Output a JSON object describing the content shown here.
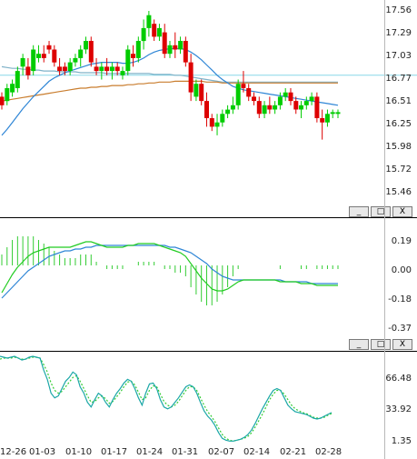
{
  "price_panel": {
    "y_ticks": [
      "17.56",
      "17.29",
      "17.03",
      "16.77",
      "16.51",
      "16.25",
      "15.98",
      "15.72",
      "15.46"
    ],
    "reference_level": 16.85
  },
  "macd_panel": {
    "y_ticks": [
      "0.19",
      "0.00",
      "-0.18",
      "-0.37"
    ]
  },
  "osc_panel": {
    "y_ticks": [
      "66.48",
      "33.92",
      "1.35"
    ]
  },
  "x_axis": {
    "labels": [
      "12-26",
      "01-03",
      "01-10",
      "01-17",
      "01-24",
      "01-31",
      "02-07",
      "02-14",
      "02-21",
      "02-28"
    ]
  },
  "window_buttons": {
    "minimize": "_",
    "restore": "□",
    "close": "X"
  },
  "colors": {
    "up": "#00cc00",
    "down": "#dd0000",
    "ma_short": "#2f86d6",
    "ma_long": "#c97d2e",
    "ref_line": "#88d8e8",
    "macd_hist": "#33cc33",
    "dif": "#22cc22",
    "dea": "#2f86d6",
    "osc_k": "#1aa7a7",
    "osc_d": "#33cc33"
  },
  "chart_data": [
    {
      "type": "candlestick",
      "ylim": [
        15.46,
        17.6
      ],
      "x": [
        "12-26",
        "12-27",
        "12-28",
        "12-29",
        "12-30",
        "12-31",
        "01-01",
        "01-02",
        "01-03",
        "01-04",
        "01-05",
        "01-06",
        "01-07",
        "01-08",
        "01-09",
        "01-10",
        "01-11",
        "01-12",
        "01-13",
        "01-14",
        "01-15",
        "01-16",
        "01-17",
        "01-18",
        "01-19",
        "01-20",
        "01-21",
        "01-22",
        "01-23",
        "01-24",
        "01-25",
        "01-26",
        "01-27",
        "01-28",
        "01-29",
        "01-30",
        "01-31",
        "02-01",
        "02-02",
        "02-03",
        "02-04",
        "02-05",
        "02-06",
        "02-07",
        "02-08",
        "02-09",
        "02-10",
        "02-11",
        "02-12",
        "02-13",
        "02-14",
        "02-15",
        "02-16",
        "02-17",
        "02-18",
        "02-19",
        "02-20",
        "02-21",
        "02-22",
        "02-23",
        "02-24",
        "02-25",
        "02-26",
        "02-27",
        "02-28"
      ],
      "ohlc": [
        [
          16.6,
          16.65,
          16.45,
          16.5
        ],
        [
          16.55,
          16.75,
          16.5,
          16.7
        ],
        [
          16.65,
          16.8,
          16.6,
          16.75
        ],
        [
          16.7,
          16.95,
          16.65,
          16.9
        ],
        [
          16.95,
          17.1,
          16.85,
          17.05
        ],
        [
          16.95,
          17.05,
          16.8,
          16.85
        ],
        [
          16.9,
          17.2,
          16.85,
          17.15
        ],
        [
          17.05,
          17.2,
          17.0,
          17.1
        ],
        [
          17.1,
          17.2,
          17.0,
          17.05
        ],
        [
          17.2,
          17.25,
          17.1,
          17.15
        ],
        [
          17.15,
          17.2,
          16.95,
          17.0
        ],
        [
          16.95,
          17.05,
          16.85,
          16.9
        ],
        [
          16.95,
          17.0,
          16.85,
          16.9
        ],
        [
          16.9,
          17.05,
          16.85,
          17.0
        ],
        [
          17.0,
          17.1,
          16.95,
          17.05
        ],
        [
          17.05,
          17.2,
          16.95,
          17.15
        ],
        [
          17.15,
          17.3,
          17.1,
          17.25
        ],
        [
          17.25,
          17.3,
          16.95,
          17.0
        ],
        [
          16.95,
          17.05,
          16.85,
          16.9
        ],
        [
          16.9,
          17.0,
          16.8,
          16.95
        ],
        [
          16.95,
          17.05,
          16.85,
          16.9
        ],
        [
          16.9,
          17.0,
          16.8,
          16.95
        ],
        [
          16.95,
          17.0,
          16.85,
          16.9
        ],
        [
          16.85,
          16.95,
          16.8,
          16.9
        ],
        [
          16.9,
          17.2,
          16.85,
          17.15
        ],
        [
          17.1,
          17.2,
          16.95,
          17.05
        ],
        [
          17.05,
          17.3,
          17.0,
          17.25
        ],
        [
          17.25,
          17.5,
          17.15,
          17.4
        ],
        [
          17.4,
          17.6,
          17.3,
          17.55
        ],
        [
          17.45,
          17.5,
          17.25,
          17.3
        ],
        [
          17.3,
          17.45,
          17.25,
          17.4
        ],
        [
          17.35,
          17.45,
          17.05,
          17.1
        ],
        [
          17.1,
          17.25,
          17.05,
          17.2
        ],
        [
          17.2,
          17.35,
          17.05,
          17.15
        ],
        [
          17.15,
          17.3,
          17.1,
          17.25
        ],
        [
          17.25,
          17.3,
          16.95,
          17.0
        ],
        [
          17.0,
          17.1,
          16.55,
          16.65
        ],
        [
          16.6,
          16.8,
          16.55,
          16.75
        ],
        [
          16.75,
          16.8,
          16.5,
          16.55
        ],
        [
          16.55,
          16.65,
          16.25,
          16.35
        ],
        [
          16.35,
          16.4,
          16.2,
          16.25
        ],
        [
          16.25,
          16.4,
          16.15,
          16.3
        ],
        [
          16.3,
          16.45,
          16.25,
          16.4
        ],
        [
          16.4,
          16.5,
          16.35,
          16.45
        ],
        [
          16.45,
          16.6,
          16.4,
          16.5
        ],
        [
          16.5,
          16.8,
          16.45,
          16.75
        ],
        [
          16.75,
          16.9,
          16.65,
          16.7
        ],
        [
          16.7,
          16.75,
          16.55,
          16.6
        ],
        [
          16.6,
          16.65,
          16.5,
          16.55
        ],
        [
          16.55,
          16.6,
          16.35,
          16.4
        ],
        [
          16.4,
          16.55,
          16.35,
          16.5
        ],
        [
          16.5,
          16.6,
          16.4,
          16.45
        ],
        [
          16.45,
          16.55,
          16.4,
          16.5
        ],
        [
          16.5,
          16.65,
          16.45,
          16.6
        ],
        [
          16.6,
          16.7,
          16.55,
          16.65
        ],
        [
          16.65,
          16.7,
          16.5,
          16.55
        ],
        [
          16.55,
          16.6,
          16.4,
          16.45
        ],
        [
          16.45,
          16.55,
          16.35,
          16.5
        ],
        [
          16.5,
          16.6,
          16.45,
          16.55
        ],
        [
          16.55,
          16.65,
          16.5,
          16.6
        ],
        [
          16.6,
          16.65,
          16.3,
          16.35
        ],
        [
          16.35,
          16.45,
          16.1,
          16.3
        ],
        [
          16.3,
          16.45,
          16.25,
          16.4
        ],
        [
          16.4,
          16.45,
          16.35,
          16.42
        ],
        [
          16.4,
          16.45,
          16.35,
          16.42
        ]
      ],
      "ma_short": [
        16.15,
        16.22,
        16.3,
        16.38,
        16.46,
        16.53,
        16.6,
        16.66,
        16.72,
        16.78,
        16.82,
        16.85,
        16.88,
        16.9,
        16.92,
        16.94,
        16.96,
        16.98,
        16.99,
        17.0,
        17.0,
        17.0,
        17.0,
        16.99,
        16.99,
        17.0,
        17.02,
        17.05,
        17.09,
        17.12,
        17.14,
        17.15,
        17.16,
        17.16,
        17.16,
        17.15,
        17.12,
        17.08,
        17.03,
        16.97,
        16.91,
        16.85,
        16.8,
        16.76,
        16.72,
        16.7,
        16.68,
        16.67,
        16.66,
        16.65,
        16.64,
        16.63,
        16.62,
        16.61,
        16.6,
        16.59,
        16.58,
        16.57,
        16.56,
        16.55,
        16.54,
        16.53,
        16.52,
        16.51,
        16.5
      ],
      "ma_long": [
        16.55,
        16.56,
        16.57,
        16.58,
        16.59,
        16.6,
        16.61,
        16.62,
        16.63,
        16.64,
        16.65,
        16.66,
        16.67,
        16.68,
        16.69,
        16.7,
        16.7,
        16.71,
        16.71,
        16.72,
        16.72,
        16.73,
        16.73,
        16.73,
        16.74,
        16.74,
        16.75,
        16.75,
        16.76,
        16.76,
        16.77,
        16.77,
        16.77,
        16.78,
        16.78,
        16.78,
        16.78,
        16.78,
        16.78,
        16.77,
        16.77,
        16.77,
        16.76,
        16.76,
        16.76,
        16.76,
        16.76,
        16.76,
        16.76,
        16.76,
        16.76,
        16.76,
        16.76,
        16.76,
        16.76,
        16.76,
        16.76,
        16.76,
        16.76,
        16.76,
        16.76,
        16.76,
        16.76,
        16.76,
        16.76
      ],
      "ma_mid": [
        16.95,
        16.94,
        16.93,
        16.93,
        16.92,
        16.92,
        16.91,
        16.91,
        16.9,
        16.9,
        16.9,
        16.89,
        16.89,
        16.89,
        16.89,
        16.88,
        16.88,
        16.88,
        16.88,
        16.88,
        16.87,
        16.87,
        16.87,
        16.87,
        16.87,
        16.87,
        16.87,
        16.87,
        16.87,
        16.86,
        16.86,
        16.86,
        16.86,
        16.85,
        16.85,
        16.84,
        16.83,
        16.82,
        16.81,
        16.8,
        16.79,
        16.78,
        16.77,
        16.77,
        16.77,
        16.77,
        16.77,
        16.77,
        16.77,
        16.77,
        16.77,
        16.77,
        16.77,
        16.77,
        16.77,
        16.77,
        16.77,
        16.77,
        16.77,
        16.77,
        16.77,
        16.77,
        16.77,
        16.77,
        16.77
      ]
    },
    {
      "type": "macd",
      "ylim": [
        -0.37,
        0.22
      ],
      "dif": [
        -0.15,
        -0.1,
        -0.05,
        -0.01,
        0.02,
        0.05,
        0.07,
        0.08,
        0.09,
        0.1,
        0.1,
        0.1,
        0.1,
        0.1,
        0.11,
        0.12,
        0.13,
        0.13,
        0.12,
        0.11,
        0.1,
        0.1,
        0.1,
        0.1,
        0.11,
        0.11,
        0.12,
        0.12,
        0.12,
        0.12,
        0.11,
        0.1,
        0.09,
        0.08,
        0.07,
        0.05,
        0.01,
        -0.03,
        -0.07,
        -0.1,
        -0.13,
        -0.14,
        -0.14,
        -0.13,
        -0.11,
        -0.09,
        -0.08,
        -0.08,
        -0.08,
        -0.08,
        -0.08,
        -0.08,
        -0.08,
        -0.09,
        -0.09,
        -0.09,
        -0.09,
        -0.1,
        -0.1,
        -0.1,
        -0.11,
        -0.11,
        -0.11,
        -0.11,
        -0.11
      ],
      "dea": [
        -0.18,
        -0.15,
        -0.12,
        -0.09,
        -0.06,
        -0.03,
        -0.01,
        0.01,
        0.03,
        0.05,
        0.06,
        0.07,
        0.08,
        0.08,
        0.09,
        0.09,
        0.1,
        0.1,
        0.11,
        0.11,
        0.11,
        0.11,
        0.11,
        0.11,
        0.11,
        0.11,
        0.11,
        0.11,
        0.11,
        0.11,
        0.11,
        0.11,
        0.1,
        0.1,
        0.09,
        0.08,
        0.07,
        0.05,
        0.03,
        0.01,
        -0.02,
        -0.04,
        -0.06,
        -0.07,
        -0.08,
        -0.08,
        -0.08,
        -0.08,
        -0.08,
        -0.08,
        -0.08,
        -0.08,
        -0.08,
        -0.08,
        -0.09,
        -0.09,
        -0.09,
        -0.09,
        -0.09,
        -0.1,
        -0.1,
        -0.1,
        -0.1,
        -0.1,
        -0.1
      ]
    },
    {
      "type": "line",
      "ylim": [
        1.35,
        96
      ],
      "series": [
        {
          "values": [
            95,
            94,
            93,
            94,
            95,
            93,
            91,
            92,
            94,
            95,
            94,
            93,
            80,
            70,
            55,
            50,
            52,
            60,
            68,
            72,
            78,
            75,
            62,
            55,
            45,
            40,
            48,
            55,
            52,
            45,
            40,
            48,
            55,
            60,
            66,
            70,
            68,
            60,
            50,
            42,
            55,
            65,
            66,
            60,
            48,
            40,
            38,
            40,
            45,
            50,
            56,
            62,
            64,
            62,
            55,
            45,
            36,
            30,
            26,
            20,
            12,
            6,
            4,
            3,
            3,
            4,
            5,
            7,
            10,
            15,
            22,
            30,
            38,
            45,
            52,
            58,
            60,
            58,
            50,
            42,
            38,
            35,
            34,
            33,
            32,
            30,
            28,
            27,
            28,
            30,
            32,
            34
          ]
        },
        {
          "values": [
            92,
            93,
            93,
            93,
            94,
            93,
            92,
            92,
            93,
            94,
            94,
            93,
            86,
            78,
            66,
            58,
            55,
            57,
            62,
            67,
            72,
            74,
            68,
            60,
            52,
            45,
            46,
            50,
            52,
            49,
            44,
            46,
            51,
            56,
            62,
            67,
            68,
            64,
            56,
            48,
            50,
            58,
            63,
            62,
            54,
            46,
            42,
            40,
            42,
            46,
            52,
            58,
            62,
            62,
            58,
            50,
            42,
            35,
            30,
            24,
            17,
            10,
            6,
            4,
            3,
            4,
            5,
            6,
            8,
            12,
            18,
            25,
            32,
            40,
            48,
            54,
            58,
            58,
            54,
            48,
            42,
            38,
            36,
            34,
            33,
            31,
            29,
            28,
            28,
            29,
            31,
            33
          ]
        }
      ]
    }
  ]
}
